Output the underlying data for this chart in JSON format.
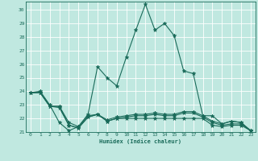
{
  "title": "",
  "xlabel": "Humidex (Indice chaleur)",
  "background_color": "#c0e8e0",
  "grid_color": "#ffffff",
  "line_color": "#1a6b5a",
  "xlim": [
    -0.5,
    23.5
  ],
  "ylim": [
    21,
    30.6
  ],
  "xticks": [
    0,
    1,
    2,
    3,
    4,
    5,
    6,
    7,
    8,
    9,
    10,
    11,
    12,
    13,
    14,
    15,
    16,
    17,
    18,
    19,
    20,
    21,
    22,
    23
  ],
  "yticks": [
    21,
    22,
    23,
    24,
    25,
    26,
    27,
    28,
    29,
    30
  ],
  "series1_x": [
    0,
    1,
    2,
    3,
    4,
    5,
    6,
    7,
    8,
    9,
    10,
    11,
    12,
    13,
    14,
    15,
    16,
    17,
    18,
    19,
    20,
    21,
    22,
    23
  ],
  "series1_y": [
    23.9,
    24.0,
    23.0,
    21.7,
    21.1,
    21.4,
    22.3,
    25.8,
    25.0,
    24.4,
    26.5,
    28.5,
    30.4,
    28.5,
    29.0,
    28.1,
    25.5,
    25.3,
    22.2,
    22.2,
    21.6,
    21.8,
    21.7,
    21.1
  ],
  "series2_x": [
    0,
    1,
    2,
    3,
    4,
    5,
    6,
    7,
    8,
    9,
    10,
    11,
    12,
    13,
    14,
    15,
    16,
    17,
    18,
    19,
    20,
    21,
    22,
    23
  ],
  "series2_y": [
    23.9,
    23.9,
    22.9,
    22.9,
    21.7,
    21.4,
    22.2,
    22.3,
    21.9,
    22.1,
    22.2,
    22.3,
    22.3,
    22.4,
    22.3,
    22.3,
    22.5,
    22.5,
    22.2,
    21.8,
    21.6,
    21.8,
    21.7,
    21.1
  ],
  "series3_x": [
    0,
    1,
    2,
    3,
    4,
    5,
    6,
    7,
    8,
    9,
    10,
    11,
    12,
    13,
    14,
    15,
    16,
    17,
    18,
    19,
    20,
    21,
    22,
    23
  ],
  "series3_y": [
    23.9,
    23.9,
    22.9,
    22.9,
    21.5,
    21.3,
    22.1,
    22.3,
    21.8,
    22.0,
    22.1,
    22.2,
    22.2,
    22.3,
    22.2,
    22.2,
    22.4,
    22.4,
    22.1,
    21.7,
    21.5,
    21.6,
    21.6,
    21.1
  ],
  "series4_x": [
    0,
    1,
    2,
    3,
    4,
    5,
    6,
    7,
    8,
    9,
    10,
    11,
    12,
    13,
    14,
    15,
    16,
    17,
    18,
    19,
    20,
    21,
    22,
    23
  ],
  "series4_y": [
    23.9,
    23.9,
    22.9,
    22.8,
    21.5,
    21.3,
    22.1,
    22.3,
    21.8,
    22.0,
    22.0,
    22.0,
    22.0,
    22.0,
    22.0,
    22.0,
    22.0,
    22.0,
    22.0,
    21.5,
    21.4,
    21.5,
    21.5,
    21.1
  ],
  "marker": "*",
  "markersize": 3.5,
  "linewidth": 0.8
}
